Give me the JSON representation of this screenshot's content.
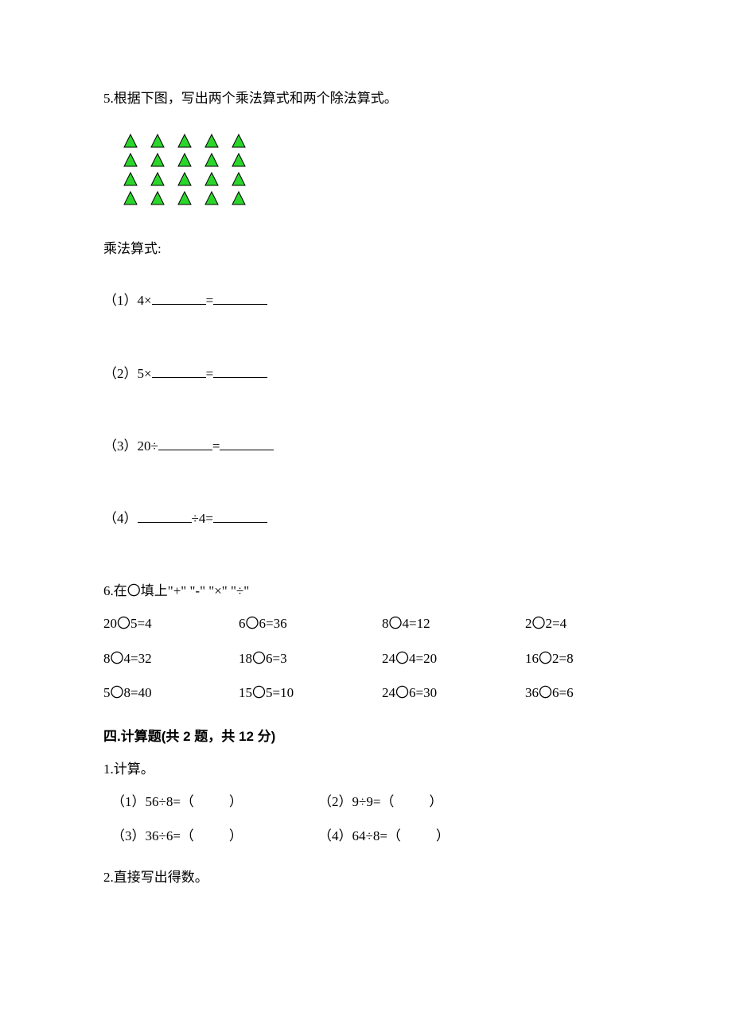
{
  "q5": {
    "title": "5.根据下图，写出两个乘法算式和两个除法算式。",
    "triangles": {
      "rows": 4,
      "cols": 5,
      "fill_color": "#2bd62b",
      "stroke_color": "#000000",
      "stroke_width": 1,
      "sidepx": 20
    },
    "label": "乘法算式:",
    "items": [
      "（1）4×",
      "（2）5×",
      "（3）20÷",
      "（4）"
    ],
    "item4_mid": "÷4="
  },
  "q6": {
    "title": "6.在〇填上\"+\" \"-\" \"×\" \"÷\"",
    "cells": [
      "20〇5=4",
      "6〇6=36",
      "8〇4=12",
      "2〇2=4",
      "8〇4=32",
      "18〇6=3",
      "24〇4=20",
      "16〇2=8",
      "5〇8=40",
      "15〇5=10",
      "24〇6=30",
      "36〇6=6"
    ]
  },
  "section4": {
    "heading": "四.计算题(共 2 题，共 12 分)",
    "q1": {
      "title": "1.计算。",
      "items": [
        "（1）56÷8=（",
        "（2）9÷9=（",
        "（3）36÷6=（",
        "（4）64÷8=（"
      ],
      "close": "）"
    },
    "q2": {
      "title": "2.直接写出得数。"
    }
  }
}
